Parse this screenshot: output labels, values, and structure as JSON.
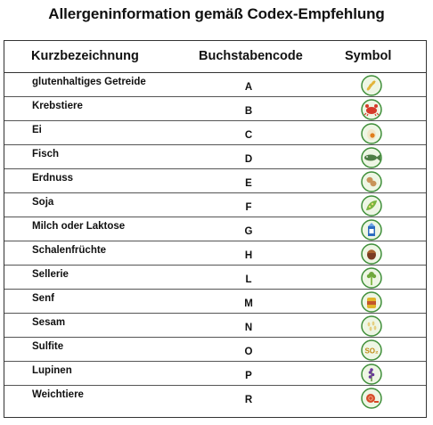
{
  "title": "Allergeninformation gemäß Codex-Empfehlung",
  "headers": {
    "name": "Kurzbezeichnung",
    "code": "Buchstabencode",
    "symbol": "Symbol"
  },
  "rows": [
    {
      "name": "glutenhaltiges Getreide",
      "code": "A",
      "icon": "grain-icon"
    },
    {
      "name": "Krebstiere",
      "code": "B",
      "icon": "crab-icon"
    },
    {
      "name": "Ei",
      "code": "C",
      "icon": "egg-icon"
    },
    {
      "name": "Fisch",
      "code": "D",
      "icon": "fish-icon"
    },
    {
      "name": "Erdnuss",
      "code": "E",
      "icon": "peanut-icon"
    },
    {
      "name": "Soja",
      "code": "F",
      "icon": "soy-icon"
    },
    {
      "name": "Milch oder Laktose",
      "code": "G",
      "icon": "milk-icon"
    },
    {
      "name": "Schalenfrüchte",
      "code": "H",
      "icon": "nut-icon"
    },
    {
      "name": "Sellerie",
      "code": "L",
      "icon": "celery-icon"
    },
    {
      "name": "Senf",
      "code": "M",
      "icon": "mustard-icon"
    },
    {
      "name": "Sesam",
      "code": "N",
      "icon": "sesame-icon"
    },
    {
      "name": "Sulfite",
      "code": "O",
      "icon": "sulfite-icon"
    },
    {
      "name": "Lupinen",
      "code": "P",
      "icon": "lupine-icon"
    },
    {
      "name": "Weichtiere",
      "code": "R",
      "icon": "snail-icon"
    }
  ],
  "colors": {
    "icon_ring": "#3f8f3a",
    "icon_bg": "#eef6e4"
  }
}
